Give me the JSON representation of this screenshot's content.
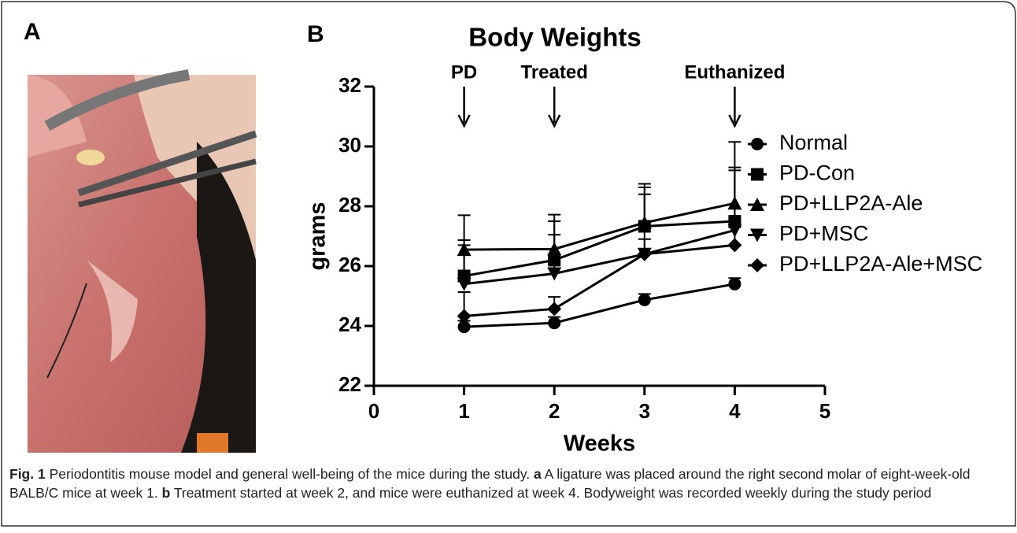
{
  "panel_labels": [
    "A",
    "B"
  ],
  "chart_data": {
    "type": "line",
    "title": "Body Weights",
    "x_label": "Weeks",
    "y_label": "grams",
    "xlim": [
      0,
      5
    ],
    "xticks": [
      0,
      1,
      2,
      3,
      4,
      5
    ],
    "ylim": [
      22,
      32
    ],
    "yticks": [
      22,
      24,
      26,
      28,
      30,
      32
    ],
    "x": [
      1,
      2,
      3,
      4
    ],
    "annotations": [
      {
        "text": "PD",
        "x": 1
      },
      {
        "text": "Treated",
        "x": 2
      },
      {
        "text": "Euthanized",
        "x": 4
      }
    ],
    "series": [
      {
        "name": "Normal",
        "color": "#000000",
        "marker": "circle",
        "values": [
          23.97,
          24.1,
          24.87,
          25.4
        ],
        "errors": [
          0.2,
          0.2,
          0.2,
          0.2
        ]
      },
      {
        "name": "PD-Con",
        "color": "#000000",
        "marker": "square",
        "values": [
          25.67,
          26.2,
          27.33,
          27.5
        ],
        "errors": [
          1.2,
          1.3,
          1.3,
          1.8
        ]
      },
      {
        "name": "PD+LLP2A-Ale",
        "color": "#000000",
        "marker": "triangle-up",
        "values": [
          26.55,
          26.57,
          27.45,
          28.1
        ],
        "errors": [
          1.15,
          1.15,
          1.3,
          2.05
        ]
      },
      {
        "name": "PD+MSC",
        "color": "#000000",
        "marker": "triangle-down",
        "values": [
          25.4,
          25.75,
          26.4,
          27.2
        ],
        "errors": [
          1.3,
          1.3,
          2.0,
          2.0
        ]
      },
      {
        "name": "PD+LLP2A-Ale+MSC",
        "color": "#000000",
        "marker": "diamond",
        "values": [
          24.33,
          24.57,
          26.4,
          26.7
        ],
        "errors": [
          0.8,
          0.4,
          0.5,
          0.6
        ]
      }
    ]
  },
  "caption": {
    "label": "Fig. 1",
    "intro": "Periodontitis mouse model and general well-being of the mice during the study.",
    "a": "a",
    "a_text": "A ligature was placed around the right second molar of eight-week-old BALB/C mice at week 1.",
    "b": "b",
    "b_text": "Treatment started at week 2, and mice were euthanized at week 4. Bodyweight was recorded weekly during the study period"
  }
}
